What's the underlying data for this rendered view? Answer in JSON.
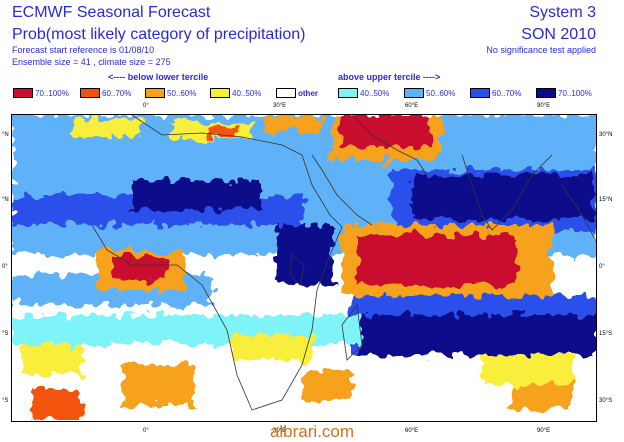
{
  "header": {
    "title": "ECMWF Seasonal Forecast",
    "subtitle": "Prob(most likely category of precipitation)",
    "forecast_ref": "Forecast start reference is 01/08/10",
    "ensemble": "Ensemble size = 41 , climate size = 275",
    "system": "System 3",
    "season": "SON 2010",
    "note": "No significance test applied"
  },
  "legend": {
    "below_label": "<---- below lower tercile",
    "above_label": "above upper tercile ---->",
    "other_label": "other",
    "below": [
      {
        "label": "70..100%",
        "color": "#c8102e"
      },
      {
        "label": "60..70%",
        "color": "#f2520c"
      },
      {
        "label": "50..60%",
        "color": "#f7a21a"
      },
      {
        "label": "40..50%",
        "color": "#f9ee3a"
      }
    ],
    "above": [
      {
        "label": "40..50%",
        "color": "#7ef4f9"
      },
      {
        "label": "50..60%",
        "color": "#5eb2f7"
      },
      {
        "label": "60..70%",
        "color": "#2a50ea"
      },
      {
        "label": "70..100%",
        "color": "#0a0a8c"
      }
    ]
  },
  "map": {
    "lon_ticks_top": [
      "0°",
      "30°E",
      "60°E",
      "90°E"
    ],
    "lon_ticks_bottom": [
      "0°",
      "30°E",
      "60°E",
      "90°E"
    ],
    "lat_ticks_left": [
      "°N",
      "°N",
      "0°",
      "°S",
      "°S"
    ],
    "lat_ticks_right": [
      "30°N",
      "15°N",
      "0°",
      "15°S",
      "30°S"
    ]
  },
  "watermark": "albrari.com"
}
